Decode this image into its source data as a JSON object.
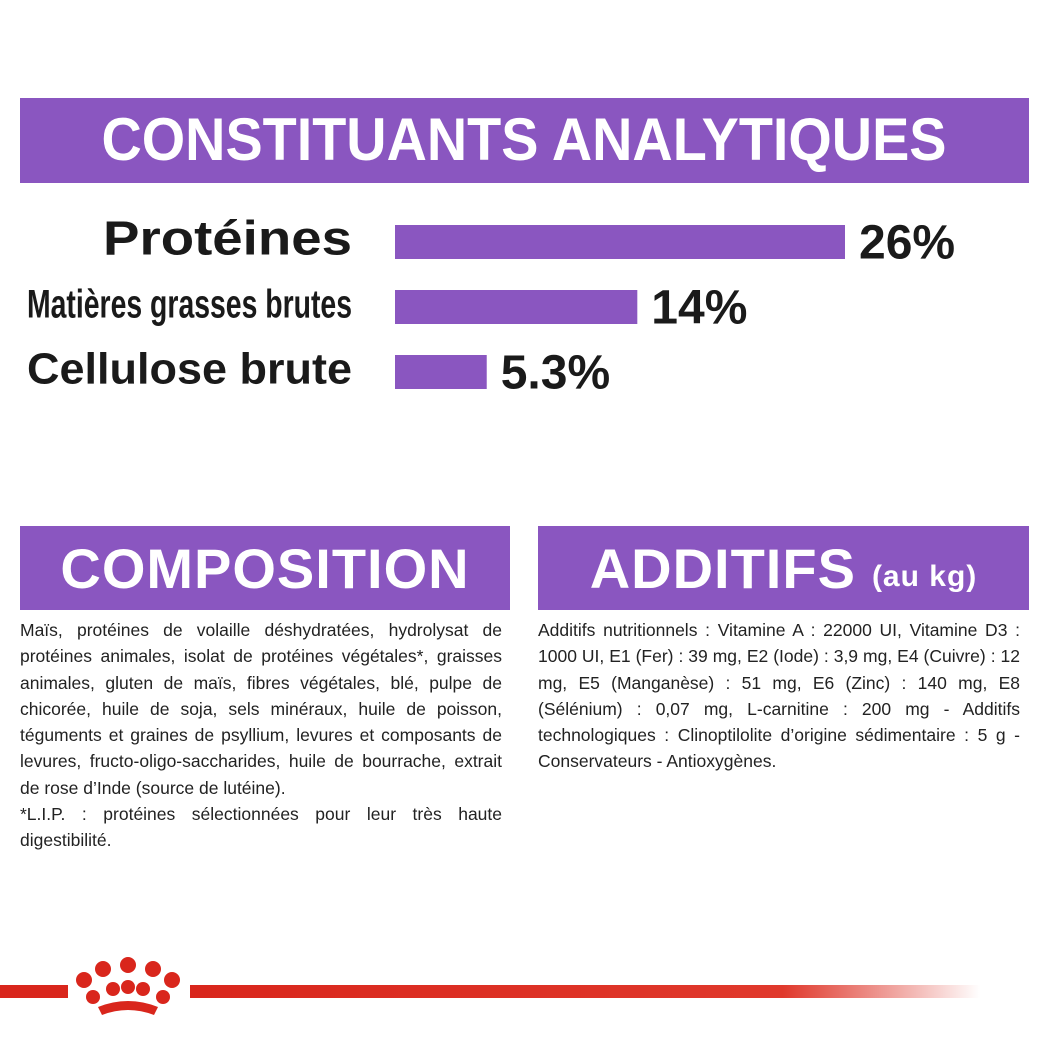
{
  "chart_data": {
    "type": "bar",
    "title": "CONSTITUANTS ANALYTIQUES",
    "categories": [
      "Protéines",
      "Matières grasses brutes",
      "Cellulose brute"
    ],
    "values": [
      26,
      14,
      5.3
    ],
    "value_labels": [
      "26%",
      "14%",
      "5.3%"
    ],
    "color": "#8a56c0",
    "xlim": [
      0,
      26
    ]
  },
  "composition": {
    "title": "COMPOSITION",
    "paragraphs": [
      "Maïs, protéines de volaille déshydratées, hydrolysat de protéines animales, isolat de protéines végétales*, graisses animales, gluten de maïs, fibres végétales, blé, pulpe de chicorée, huile de soja, sels minéraux, huile de poisson, téguments et graines de psyllium, levures et composants de levures, fructo-oligo-saccharides, huile de bourrache, extrait de rose d’Inde (source de lutéine).",
      "*L.I.P. : protéines sélectionnées pour leur très haute digestibilité."
    ]
  },
  "additifs": {
    "title": "ADDITIFS",
    "subtitle": "(au kg)",
    "text": "Additifs nutritionnels : Vitamine A : 22000 UI, Vitamine D3 : 1000 UI, E1 (Fer) : 39 mg, E2 (Iode) : 3,9 mg, E4 (Cuivre) : 12 mg, E5 (Manganèse) : 51 mg, E6 (Zinc) : 140 mg, E8 (Sélénium) : 0,07 mg, L-carnitine : 200 mg - Additifs technologiques : Clinoptilolite d’origine sédimentaire : 5 g - Conservateurs - Antioxygènes."
  }
}
